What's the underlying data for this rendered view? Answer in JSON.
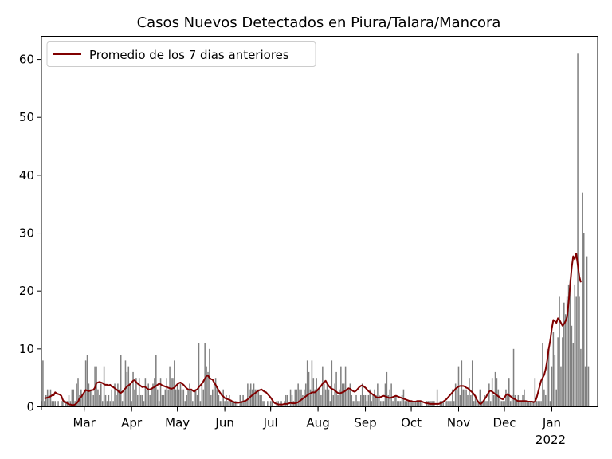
{
  "chart_data": {
    "type": "bar",
    "title": "Casos Nuevos Detectados en Piura/Talara/Mancora",
    "xlabel": "",
    "ylabel": "",
    "ylim": [
      0,
      64
    ],
    "xlim": [
      "2021-02-01",
      "2022-01-31"
    ],
    "grid": false,
    "legend_position": "top-left",
    "y_ticks": [
      0,
      10,
      20,
      30,
      40,
      50,
      60
    ],
    "x_ticks": [
      {
        "date": "2021-03-01",
        "label": "Mar"
      },
      {
        "date": "2021-04-01",
        "label": "Apr"
      },
      {
        "date": "2021-05-01",
        "label": "May"
      },
      {
        "date": "2021-06-01",
        "label": "Jun"
      },
      {
        "date": "2021-07-01",
        "label": "Jul"
      },
      {
        "date": "2021-08-01",
        "label": "Aug"
      },
      {
        "date": "2021-09-01",
        "label": "Sep"
      },
      {
        "date": "2021-10-01",
        "label": "Oct"
      },
      {
        "date": "2021-11-01",
        "label": "Nov"
      },
      {
        "date": "2021-12-01",
        "label": "Dec"
      },
      {
        "date": "2022-01-01",
        "label": "Jan"
      }
    ],
    "x_tick_sublabel": "2022",
    "series": [
      {
        "name": "",
        "kind": "bar",
        "color": "#808080",
        "start_date": "2021-02-01",
        "values": [
          1,
          8,
          1,
          2,
          3,
          2,
          3,
          1,
          1,
          1,
          0,
          1,
          0,
          1,
          1,
          0,
          1,
          1,
          2,
          1,
          3,
          3,
          1,
          4,
          5,
          2,
          3,
          2,
          3,
          8,
          9,
          4,
          3,
          3,
          2,
          7,
          7,
          3,
          2,
          4,
          1,
          7,
          2,
          1,
          2,
          1,
          3,
          1,
          4,
          2,
          4,
          3,
          9,
          1,
          3,
          8,
          6,
          7,
          4,
          1,
          6,
          3,
          5,
          2,
          5,
          2,
          2,
          1,
          5,
          3,
          4,
          2,
          3,
          4,
          5,
          9,
          3,
          1,
          5,
          2,
          2,
          3,
          5,
          3,
          7,
          5,
          5,
          8,
          3,
          4,
          3,
          4,
          3,
          3,
          1,
          2,
          3,
          4,
          3,
          1,
          3,
          3,
          2,
          11,
          1,
          4,
          3,
          11,
          7,
          6,
          10,
          2,
          3,
          4,
          5,
          3,
          2,
          1,
          1,
          3,
          1,
          2,
          1,
          2,
          1,
          1,
          1,
          1,
          1,
          0,
          2,
          1,
          2,
          1,
          1,
          4,
          3,
          4,
          3,
          4,
          3,
          3,
          3,
          2,
          2,
          1,
          1,
          0,
          1,
          0,
          1,
          1,
          0,
          0,
          1,
          1,
          0,
          1,
          0,
          1,
          2,
          2,
          0,
          3,
          2,
          1,
          3,
          3,
          4,
          3,
          3,
          2,
          3,
          4,
          8,
          6,
          3,
          8,
          5,
          3,
          5,
          3,
          3,
          2,
          7,
          4,
          3,
          4,
          3,
          1,
          8,
          2,
          4,
          6,
          2,
          3,
          7,
          4,
          4,
          7,
          3,
          3,
          4,
          2,
          1,
          1,
          2,
          1,
          1,
          2,
          4,
          2,
          2,
          1,
          2,
          3,
          1,
          2,
          3,
          2,
          4,
          2,
          1,
          1,
          1,
          4,
          6,
          2,
          3,
          4,
          1,
          2,
          2,
          1,
          1,
          1,
          2,
          3,
          1,
          1,
          1,
          1,
          1,
          1,
          1,
          1,
          1,
          1,
          1,
          1,
          0,
          0,
          1,
          1,
          1,
          1,
          1,
          1,
          0,
          3,
          0,
          1,
          1,
          1,
          0,
          1,
          1,
          1,
          1,
          3,
          1,
          4,
          3,
          7,
          2,
          8,
          3,
          3,
          3,
          2,
          5,
          2,
          8,
          1,
          2,
          1,
          1,
          3,
          1,
          1,
          2,
          1,
          1,
          4,
          1,
          5,
          2,
          6,
          5,
          3,
          2,
          1,
          1,
          1,
          3,
          2,
          5,
          1,
          2,
          10,
          2,
          1,
          2,
          1,
          1,
          2,
          3,
          1,
          1,
          1,
          1,
          1,
          1,
          5,
          1,
          1,
          1,
          1,
          11,
          3,
          2,
          10,
          10,
          1,
          7,
          13,
          9,
          3,
          12,
          19,
          7,
          12,
          18,
          16,
          19,
          21,
          22,
          14,
          11,
          21,
          19,
          61,
          19,
          10,
          37,
          30,
          7,
          26,
          7
        ]
      },
      {
        "name": "Promedio de los 7 dias anteriores",
        "kind": "line",
        "color": "#800000",
        "start_date": "2021-02-03",
        "values": [
          1.5,
          1.5,
          1.6,
          1.7,
          1.8,
          2.0,
          2.0,
          2.5,
          2.3,
          2.2,
          2.1,
          1.9,
          1.2,
          0.8,
          0.8,
          0.6,
          0.4,
          0.4,
          0.3,
          0.3,
          0.4,
          0.6,
          0.9,
          1.5,
          1.7,
          2.1,
          2.5,
          2.9,
          2.8,
          2.7,
          2.8,
          2.9,
          2.9,
          3.3,
          4.1,
          4.2,
          4.3,
          4.2,
          4.1,
          3.9,
          3.8,
          3.8,
          3.7,
          3.8,
          3.5,
          3.4,
          3.2,
          3.0,
          2.8,
          2.5,
          2.4,
          2.6,
          2.9,
          3.2,
          3.5,
          3.7,
          3.9,
          4.2,
          4.5,
          4.6,
          4.3,
          4.0,
          3.8,
          3.6,
          3.4,
          3.5,
          3.4,
          3.2,
          3.0,
          3.0,
          3.1,
          3.3,
          3.4,
          3.6,
          3.8,
          4.0,
          3.9,
          3.7,
          3.6,
          3.5,
          3.4,
          3.3,
          3.2,
          3.1,
          3.2,
          3.3,
          3.6,
          3.9,
          4.1,
          4.2,
          4.0,
          3.8,
          3.5,
          3.2,
          3.0,
          2.9,
          3.0,
          2.8,
          2.6,
          2.9,
          3.0,
          3.4,
          3.7,
          4.0,
          4.4,
          4.9,
          5.3,
          5.4,
          5.0,
          4.8,
          4.7,
          4.2,
          3.8,
          3.3,
          2.8,
          2.4,
          2.0,
          1.8,
          1.5,
          1.4,
          1.3,
          1.2,
          1.1,
          0.9,
          0.8,
          0.7,
          0.7,
          0.7,
          0.8,
          0.8,
          0.9,
          1.0,
          1.1,
          1.3,
          1.5,
          1.8,
          2.0,
          2.2,
          2.4,
          2.6,
          2.8,
          2.9,
          3.0,
          2.8,
          2.6,
          2.5,
          2.2,
          1.9,
          1.6,
          1.2,
          0.8,
          0.6,
          0.5,
          0.4,
          0.4,
          0.4,
          0.4,
          0.5,
          0.5,
          0.5,
          0.6,
          0.7,
          0.6,
          0.6,
          0.6,
          0.7,
          0.8,
          1.0,
          1.2,
          1.4,
          1.6,
          1.8,
          2.0,
          2.2,
          2.3,
          2.5,
          2.5,
          2.5,
          2.7,
          3.0,
          3.3,
          3.6,
          4.0,
          4.3,
          4.5,
          4.0,
          3.6,
          3.3,
          3.1,
          3.0,
          2.8,
          2.6,
          2.4,
          2.3,
          2.4,
          2.5,
          2.6,
          2.8,
          3.0,
          3.2,
          3.1,
          2.9,
          2.7,
          2.6,
          2.8,
          3.1,
          3.4,
          3.6,
          3.7,
          3.5,
          3.3,
          3.0,
          2.7,
          2.5,
          2.3,
          2.1,
          1.9,
          1.7,
          1.6,
          1.6,
          1.7,
          1.8,
          1.9,
          1.8,
          1.7,
          1.6,
          1.5,
          1.6,
          1.7,
          1.8,
          1.9,
          1.8,
          1.7,
          1.6,
          1.5,
          1.4,
          1.3,
          1.2,
          1.1,
          1.0,
          1.0,
          0.9,
          0.9,
          0.9,
          1.0,
          1.0,
          1.0,
          0.9,
          0.8,
          0.7,
          0.6,
          0.6,
          0.5,
          0.5,
          0.5,
          0.5,
          0.5,
          0.5,
          0.5,
          0.6,
          0.7,
          0.9,
          1.1,
          1.3,
          1.6,
          1.9,
          2.2,
          2.5,
          2.8,
          3.1,
          3.3,
          3.5,
          3.6,
          3.6,
          3.6,
          3.5,
          3.3,
          3.2,
          3.0,
          2.7,
          2.5,
          2.2,
          1.8,
          1.2,
          0.8,
          0.5,
          0.6,
          0.9,
          1.3,
          1.7,
          2.2,
          2.6,
          2.8,
          2.6,
          2.4,
          2.2,
          2.0,
          1.8,
          1.6,
          1.4,
          1.3,
          1.6,
          2.0,
          2.2,
          2.0,
          1.8,
          1.6,
          1.4,
          1.3,
          1.1,
          1.0,
          1.0,
          1.0,
          1.0,
          1.0,
          1.0,
          0.9,
          0.9,
          0.9,
          0.9,
          0.8,
          0.9,
          1.5,
          2.5,
          3.5,
          4.5,
          5.0,
          5.5,
          6.5,
          8.0,
          10.0,
          11.5,
          13.5,
          15.0,
          14.8,
          14.5,
          15.3,
          15.0,
          14.5,
          14.0,
          14.3,
          14.8,
          15.5,
          18.0,
          21.0,
          24.0,
          26.0,
          25.5,
          26.5,
          24.5,
          22.5,
          21.5
        ]
      }
    ]
  }
}
